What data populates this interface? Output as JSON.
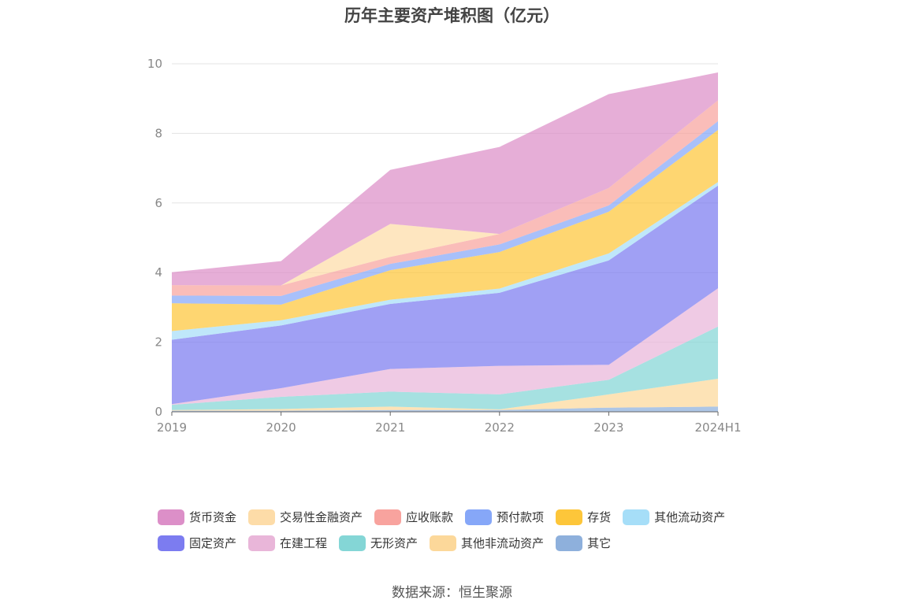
{
  "chart_data": {
    "type": "area",
    "title": "历年主要资产堆积图（亿元）",
    "categories": [
      "2019",
      "2020",
      "2021",
      "2022",
      "2023",
      "2024H1"
    ],
    "ylim": [
      0,
      10
    ],
    "yticks": [
      0,
      2,
      4,
      6,
      8,
      10
    ],
    "grid": true,
    "legend_position": "bottom",
    "series": [
      {
        "name": "其它",
        "color": "#8eb0dc",
        "values": [
          0.03,
          0.03,
          0.05,
          0.05,
          0.12,
          0.15
        ]
      },
      {
        "name": "其他非流动资产",
        "color": "#fcd89a",
        "values": [
          0.02,
          0.05,
          0.1,
          0.02,
          0.38,
          0.8
        ]
      },
      {
        "name": "无形资产",
        "color": "#84d6d6",
        "values": [
          0.15,
          0.35,
          0.43,
          0.43,
          0.42,
          1.5
        ]
      },
      {
        "name": "在建工程",
        "color": "#e9b6d9",
        "values": [
          0.02,
          0.25,
          0.65,
          0.82,
          0.43,
          1.1
        ]
      },
      {
        "name": "固定资产",
        "color": "#7c7cf0",
        "values": [
          1.85,
          1.8,
          1.87,
          2.1,
          3.0,
          2.95
        ]
      },
      {
        "name": "其他流动资产",
        "color": "#a6def8",
        "values": [
          0.25,
          0.15,
          0.12,
          0.12,
          0.2,
          0.1
        ]
      },
      {
        "name": "存货",
        "color": "#fdc63a",
        "values": [
          0.8,
          0.45,
          0.85,
          1.05,
          1.2,
          1.5
        ]
      },
      {
        "name": "预付款项",
        "color": "#86a7f8",
        "values": [
          0.22,
          0.25,
          0.18,
          0.22,
          0.18,
          0.25
        ]
      },
      {
        "name": "应收账款",
        "color": "#f8a39e",
        "values": [
          0.3,
          0.3,
          0.2,
          0.3,
          0.5,
          0.6
        ]
      },
      {
        "name": "交易性金融资产",
        "color": "#fddca8",
        "values": [
          0.0,
          0.0,
          0.95,
          0.0,
          0.0,
          0.0
        ]
      },
      {
        "name": "货币资金",
        "color": "#dc8fc8",
        "values": [
          0.37,
          0.7,
          1.55,
          2.5,
          2.7,
          0.8
        ]
      }
    ]
  },
  "legend": {
    "row1": [
      {
        "label": "货币资金",
        "color": "#dc8fc8"
      },
      {
        "label": "交易性金融资产",
        "color": "#fddca8"
      },
      {
        "label": "应收账款",
        "color": "#f8a39e"
      },
      {
        "label": "预付款项",
        "color": "#86a7f8"
      },
      {
        "label": "存货",
        "color": "#fdc63a"
      },
      {
        "label": "其他流动资产",
        "color": "#a6def8"
      }
    ],
    "row2": [
      {
        "label": "固定资产",
        "color": "#7c7cf0"
      },
      {
        "label": "在建工程",
        "color": "#e9b6d9"
      },
      {
        "label": "无形资产",
        "color": "#84d6d6"
      },
      {
        "label": "其他非流动资产",
        "color": "#fcd89a"
      },
      {
        "label": "其它",
        "color": "#8eb0dc"
      }
    ]
  },
  "source": "数据来源：恒生聚源"
}
